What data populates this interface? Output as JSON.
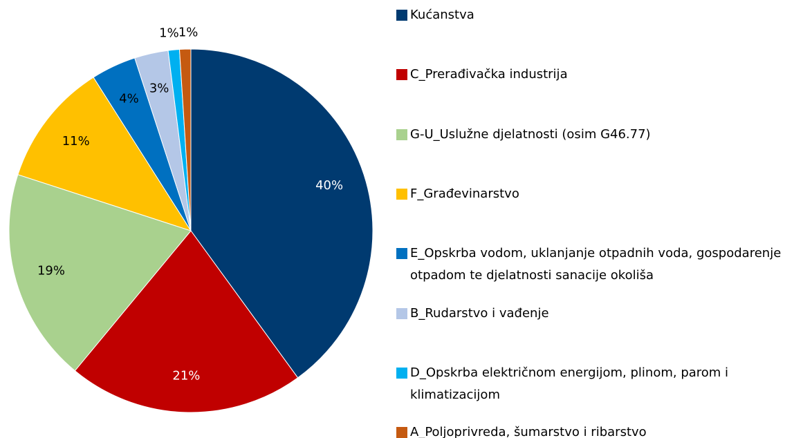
{
  "chart_data": {
    "type": "pie",
    "categories": [
      "Kućanstva",
      "C_Prerađivačka industrija",
      "G-U_Uslužne djelatnosti (osim G46.77)",
      "F_Građevinarstvo",
      "E_Opskrba vodom, uklanjanje otpadnih voda, gospodarenje otpadom te djelatnosti sanacije okoliša",
      "B_Rudarstvo i vađenje",
      "D_Opskrba električnom energijom, plinom, parom i klimatizacijom",
      "A_Poljoprivreda, šumarstvo i ribarstvo"
    ],
    "values": [
      40,
      21,
      19,
      11,
      4,
      3,
      1,
      1
    ],
    "value_labels": [
      "40%",
      "21%",
      "19%",
      "11%",
      "4%",
      "3%",
      "1%",
      "1%"
    ],
    "colors": [
      "#003a70",
      "#c00000",
      "#a9d18e",
      "#ffc000",
      "#0070c0",
      "#b4c7e7",
      "#00b0f0",
      "#c55a11"
    ]
  }
}
